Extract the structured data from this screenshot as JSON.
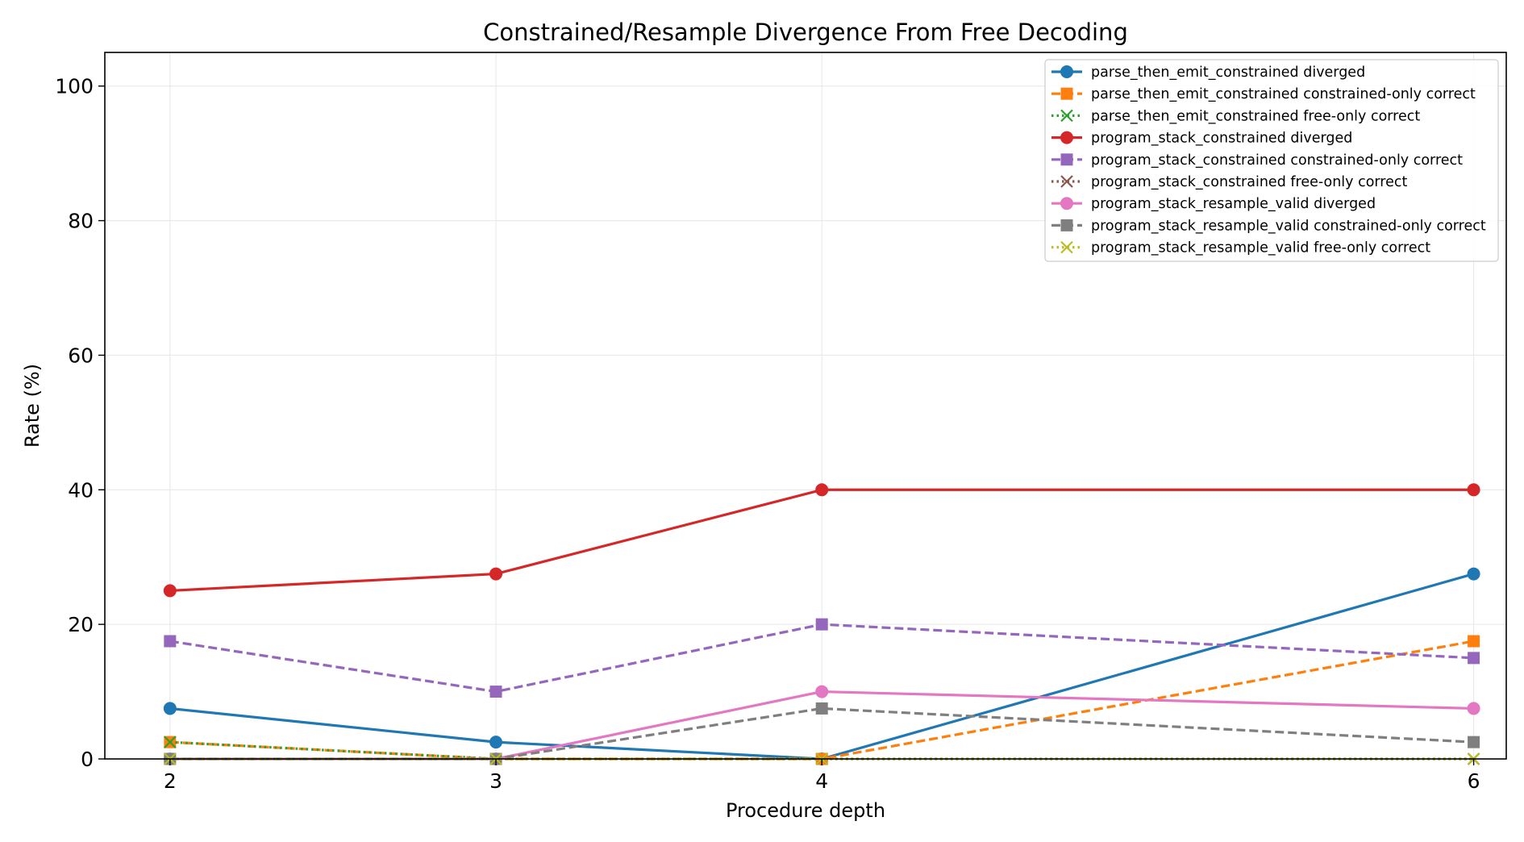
{
  "chart_data": {
    "type": "line",
    "title": "Constrained/Resample Divergence From Free Decoding",
    "xlabel": "Procedure depth",
    "ylabel": "Rate (%)",
    "x": [
      2,
      3,
      4,
      6
    ],
    "x_ticks": [
      "2",
      "3",
      "4",
      "6"
    ],
    "y_ticks": [
      "0",
      "20",
      "40",
      "60",
      "80",
      "100"
    ],
    "xlim": [
      1.8,
      6.1
    ],
    "ylim": [
      0,
      105
    ],
    "grid": true,
    "legend_position": "top-right",
    "series": [
      {
        "name": "parse_then_emit_constrained diverged",
        "values": [
          7.5,
          2.5,
          0,
          27.5
        ],
        "color": "#1f77b4",
        "marker": "circle",
        "linestyle": "solid"
      },
      {
        "name": "parse_then_emit_constrained constrained-only correct",
        "values": [
          2.5,
          0,
          0,
          17.5
        ],
        "color": "#ff7f0e",
        "marker": "square",
        "linestyle": "dashed"
      },
      {
        "name": "parse_then_emit_constrained free-only correct",
        "values": [
          2.5,
          0,
          0,
          0
        ],
        "color": "#2ca02c",
        "marker": "x",
        "linestyle": "dotted"
      },
      {
        "name": "program_stack_constrained diverged",
        "values": [
          25,
          27.5,
          40,
          40
        ],
        "color": "#d62728",
        "marker": "circle",
        "linestyle": "solid"
      },
      {
        "name": "program_stack_constrained constrained-only correct",
        "values": [
          17.5,
          10,
          20,
          15
        ],
        "color": "#9467bd",
        "marker": "square",
        "linestyle": "dashed"
      },
      {
        "name": "program_stack_constrained free-only correct",
        "values": [
          0,
          0,
          0,
          0
        ],
        "color": "#8c564b",
        "marker": "x",
        "linestyle": "dotted"
      },
      {
        "name": "program_stack_resample_valid diverged",
        "values": [
          0,
          0,
          10,
          7.5
        ],
        "color": "#e377c2",
        "marker": "circle",
        "linestyle": "solid"
      },
      {
        "name": "program_stack_resample_valid constrained-only correct",
        "values": [
          0,
          0,
          7.5,
          2.5
        ],
        "color": "#7f7f7f",
        "marker": "square",
        "linestyle": "dashed"
      },
      {
        "name": "program_stack_resample_valid free-only correct",
        "values": [
          0,
          0,
          0,
          0
        ],
        "color": "#bcbd22",
        "marker": "x",
        "linestyle": "dotted"
      }
    ]
  }
}
